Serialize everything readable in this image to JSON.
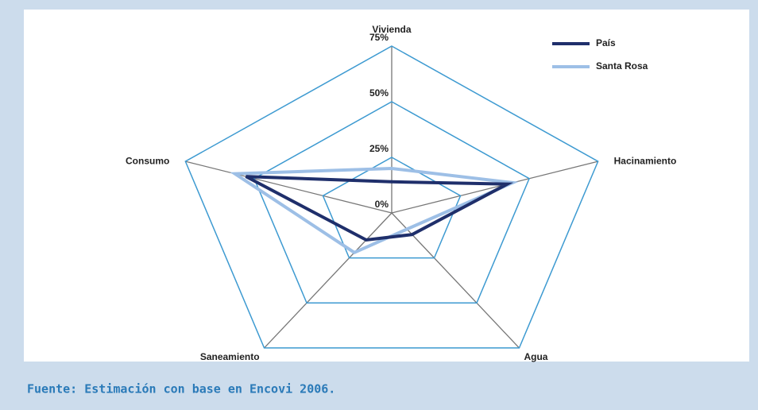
{
  "chart_data": {
    "type": "radar",
    "categories": [
      "Vivienda",
      "Hacinamiento",
      "Agua",
      "Saneamiento",
      "Consumo"
    ],
    "series": [
      {
        "name": "País",
        "color": "#1f2f6b",
        "values": [
          14,
          42,
          12,
          15,
          53
        ]
      },
      {
        "name": "Santa Rosa",
        "color": "#9dbfe6",
        "values": [
          20,
          44,
          9,
          22,
          57
        ]
      }
    ],
    "ylim": [
      0,
      75
    ],
    "yticks": [
      {
        "value": 0,
        "label": "0%"
      },
      {
        "value": 25,
        "label": "25%"
      },
      {
        "value": 50,
        "label": "50%"
      },
      {
        "value": 75,
        "label": "75%"
      }
    ],
    "grid": true,
    "legend": "top-right"
  },
  "footer": "Fuente: Estimación con base en Encovi 2006."
}
